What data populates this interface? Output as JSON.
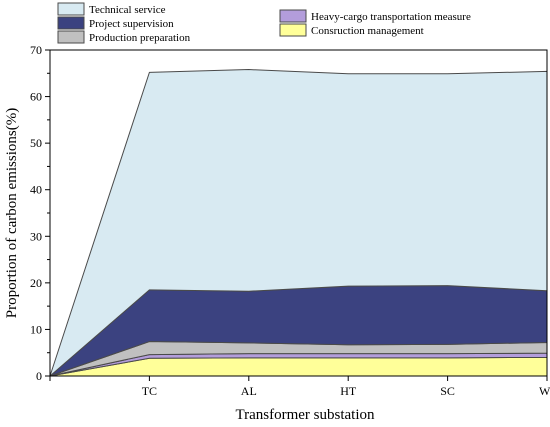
{
  "chart_data": {
    "type": "area",
    "stacked": true,
    "categories": [
      "",
      "TC",
      "AL",
      "HT",
      "SC",
      "WJ"
    ],
    "xlabel": "Transformer substation",
    "ylabel": "Proportion of carbon emissions(%)",
    "ylim": [
      0,
      70
    ],
    "yticks": [
      0,
      10,
      20,
      30,
      40,
      50,
      60,
      70
    ],
    "grid": false,
    "legend_position": "top",
    "series": [
      {
        "name": "Consruction management",
        "color": "#ffff99",
        "values": [
          0,
          3.8,
          3.9,
          3.9,
          3.9,
          4.0
        ]
      },
      {
        "name": "Heavy-cargo transportation measure",
        "color": "#b39ddb",
        "values": [
          0,
          0.8,
          0.9,
          0.9,
          0.9,
          0.9
        ]
      },
      {
        "name": "Production preparation",
        "color": "#c0c0c0",
        "values": [
          0,
          2.8,
          2.3,
          1.9,
          2.0,
          2.3
        ]
      },
      {
        "name": "Project supervision",
        "color": "#3b4280",
        "values": [
          0,
          11.1,
          11.1,
          12.6,
          12.6,
          11.1
        ]
      },
      {
        "name": "Technical service",
        "color": "#d8eaf2",
        "values": [
          0,
          46.7,
          47.6,
          45.6,
          45.5,
          47.1
        ]
      }
    ]
  }
}
